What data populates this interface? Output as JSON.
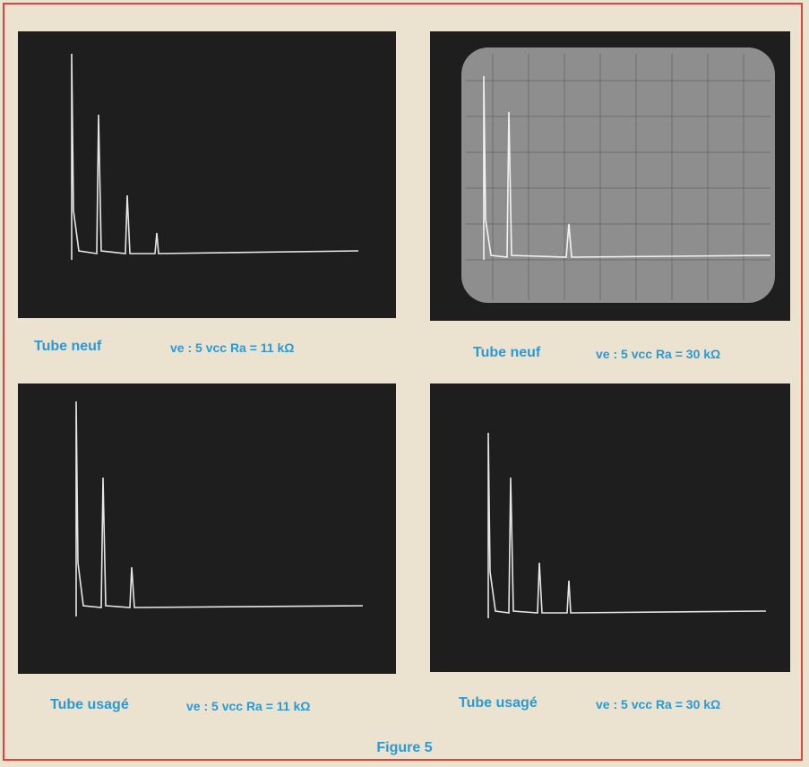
{
  "figures": [
    {
      "label": "Tube neuf",
      "conditions": "ve : 5 vcc Ra = 11 kΩ"
    },
    {
      "label": "Tube neuf",
      "conditions": "ve : 5 vcc Ra = 30 kΩ"
    },
    {
      "label": "Tube usagé",
      "conditions": "ve : 5 vcc Ra = 11 kΩ"
    },
    {
      "label": "Tube usagé",
      "conditions": "ve : 5 vcc Ra = 30 kΩ"
    }
  ],
  "caption": "Figure 5"
}
